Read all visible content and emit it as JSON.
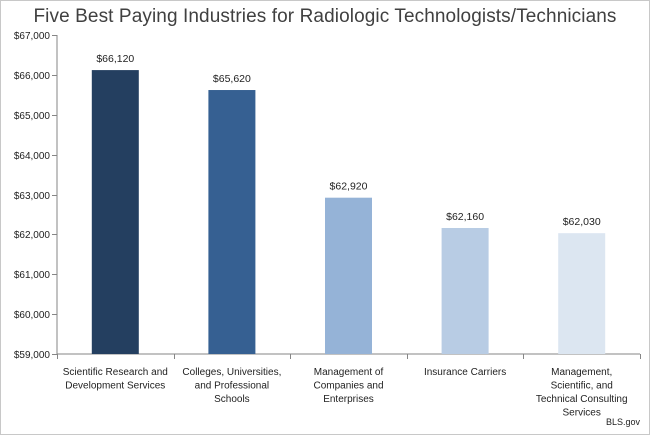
{
  "chart_data": {
    "type": "bar",
    "title": "Five Best Paying Industries for Radiologic Technologists/Technicians",
    "categories": [
      [
        "Scientific Research and",
        "Development Services"
      ],
      [
        "Colleges, Universities,",
        "and Professional",
        "Schools"
      ],
      [
        "Management of",
        "Companies and",
        "Enterprises"
      ],
      [
        "Insurance Carriers"
      ],
      [
        "Management,",
        "Scientific, and",
        "Technical Consulting",
        "Services"
      ]
    ],
    "values": [
      66120,
      65620,
      62920,
      62160,
      62030
    ],
    "data_labels": [
      "$66,120",
      "$65,620",
      "$62,920",
      "$62,160",
      "$62,030"
    ],
    "bar_colors": [
      "#243f60",
      "#366092",
      "#95b3d7",
      "#b8cce4",
      "#dce6f1"
    ],
    "ylim": [
      59000,
      67000
    ],
    "yticks": [
      59000,
      60000,
      61000,
      62000,
      63000,
      64000,
      65000,
      66000,
      67000
    ],
    "ytick_labels": [
      "$59,000",
      "$60,000",
      "$61,000",
      "$62,000",
      "$63,000",
      "$64,000",
      "$65,000",
      "$66,000",
      "$67,000"
    ],
    "xlabel": "",
    "ylabel": "",
    "grid": false,
    "legend": "none"
  },
  "source": "BLS.gov",
  "colors": {
    "axis": "#868686",
    "text": "#222222",
    "title": "#404040"
  }
}
